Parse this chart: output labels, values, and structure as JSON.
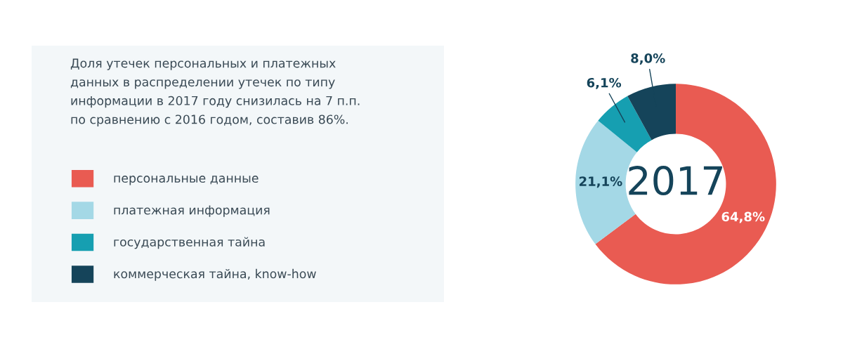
{
  "chart_data": {
    "type": "donut",
    "subtitle": "Доля утечек персональных и платежных\nданных в распределении утечек по типу\nинформации в 2017 году снизилась на 7 п.п.\nпо сравнению с 2016 годом, составив 86%.",
    "annotations": [
      "2017"
    ],
    "categories": [
      "персональные данные",
      "платежная информация",
      "государственная тайна",
      "коммерческая тайна, know-how"
    ],
    "values": [
      64.8,
      21.1,
      6.1,
      8.0
    ],
    "value_labels": [
      "64,8%",
      "21,1%",
      "6,1%",
      "8,0%"
    ],
    "colors": [
      "#e95b52",
      "#a4d8e6",
      "#169fb1",
      "#15445a"
    ],
    "legend": "left"
  }
}
